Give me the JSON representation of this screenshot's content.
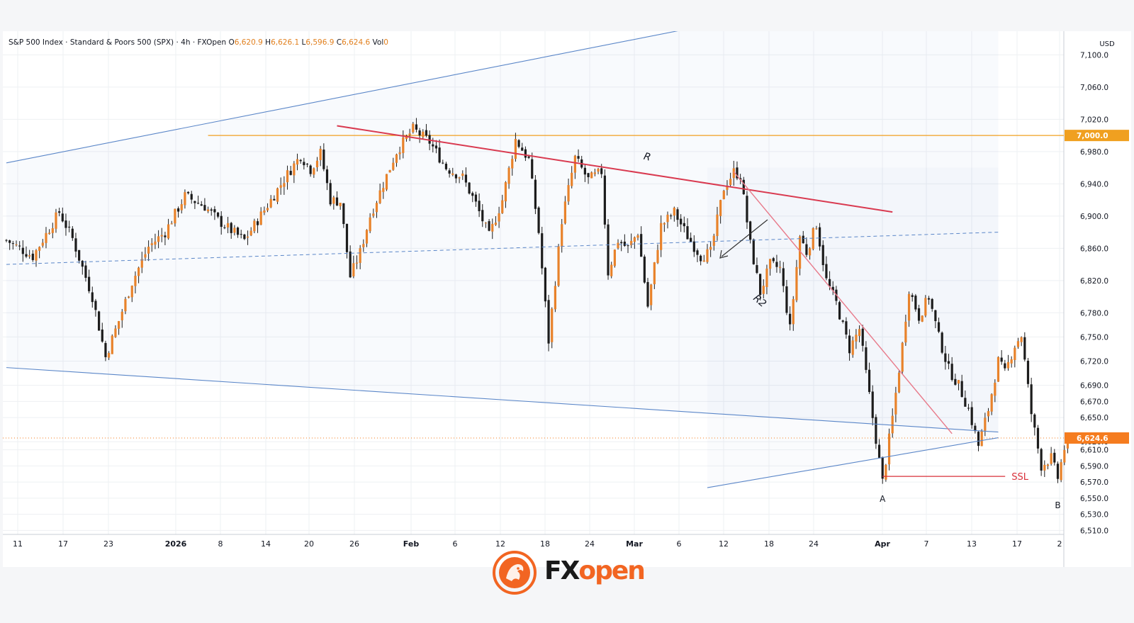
{
  "header": {
    "instrument": "S&P 500 Index · Standard & Poors 500 (SPX) · 4h · FXOpen",
    "open_label": "O",
    "open": "6,620.9",
    "high_label": "H",
    "high": "6,626.1",
    "low_label": "L",
    "low": "6,596.9",
    "close_label": "C",
    "close": "6,624.6",
    "vol_label": "Vol",
    "vol": "0"
  },
  "currency": "USD",
  "logo": {
    "fx": "FX",
    "open": "open"
  },
  "colors": {
    "up_candle": "#e8822a",
    "down_candle": "#1c1c1c",
    "channel": "#5a86c8",
    "resistance_R": "#d93a50",
    "resistance_R2": "#e87a8a",
    "level_7000": "#f0a020",
    "price_tag": "#f57c1f",
    "ssl": "#d9303a"
  },
  "chart_data": {
    "type": "candlestick",
    "timeframe": "4h",
    "currency": "USD",
    "ylim": [
      6505,
      7125
    ],
    "x_ticks": [
      "11",
      "17",
      "23",
      "2026",
      "8",
      "14",
      "20",
      "26",
      "Feb",
      "6",
      "12",
      "18",
      "24",
      "Mar",
      "6",
      "12",
      "18",
      "24",
      "Apr",
      "7",
      "13",
      "17",
      "2"
    ],
    "y_ticks": [
      "7,100.0",
      "7,060.0",
      "7,020.0",
      "6,980.0",
      "6,940.0",
      "6,900.0",
      "6,860.0",
      "6,820.0",
      "6,780.0",
      "6,750.0",
      "6,720.0",
      "6,690.0",
      "6,670.0",
      "6,650.0",
      "6,620.0",
      "6,610.0",
      "6,590.0",
      "6,570.0",
      "6,550.0",
      "6,530.0",
      "6,510.0"
    ],
    "last_price": {
      "label": "6,624.6",
      "value": 6624.6
    },
    "levels": [
      {
        "label": "7,000.0",
        "value": 7000
      }
    ],
    "close_path": [
      [
        0,
        6870
      ],
      [
        8,
        6850
      ],
      [
        16,
        6905
      ],
      [
        20,
        6872
      ],
      [
        26,
        6800
      ],
      [
        30,
        6725
      ],
      [
        34,
        6770
      ],
      [
        38,
        6818
      ],
      [
        43,
        6862
      ],
      [
        48,
        6880
      ],
      [
        54,
        6925
      ],
      [
        60,
        6912
      ],
      [
        64,
        6895
      ],
      [
        68,
        6882
      ],
      [
        72,
        6870
      ],
      [
        76,
        6895
      ],
      [
        80,
        6920
      ],
      [
        85,
        6952
      ],
      [
        89,
        6975
      ],
      [
        92,
        6958
      ],
      [
        95,
        6978
      ],
      [
        98,
        6920
      ],
      [
        101,
        6918
      ],
      [
        104,
        6825
      ],
      [
        107,
        6855
      ],
      [
        110,
        6900
      ],
      [
        113,
        6930
      ],
      [
        118,
        6980
      ],
      [
        123,
        7008
      ],
      [
        128,
        6992
      ],
      [
        133,
        6960
      ],
      [
        138,
        6948
      ],
      [
        142,
        6915
      ],
      [
        146,
        6875
      ],
      [
        150,
        6920
      ],
      [
        154,
        6995
      ],
      [
        158,
        6970
      ],
      [
        161,
        6880
      ],
      [
        164,
        6745
      ],
      [
        168,
        6895
      ],
      [
        172,
        6972
      ],
      [
        176,
        6945
      ],
      [
        180,
        6955
      ],
      [
        182,
        6830
      ],
      [
        185,
        6870
      ],
      [
        188,
        6860
      ],
      [
        191,
        6880
      ],
      [
        194,
        6788
      ],
      [
        198,
        6888
      ],
      [
        202,
        6905
      ],
      [
        206,
        6875
      ],
      [
        210,
        6850
      ],
      [
        213,
        6855
      ],
      [
        217,
        6935
      ],
      [
        220,
        6955
      ],
      [
        222,
        6950
      ],
      [
        225,
        6865
      ],
      [
        228,
        6805
      ],
      [
        231,
        6840
      ],
      [
        234,
        6835
      ],
      [
        237,
        6760
      ],
      [
        240,
        6875
      ],
      [
        242,
        6855
      ],
      [
        245,
        6890
      ],
      [
        248,
        6820
      ],
      [
        251,
        6792
      ],
      [
        255,
        6735
      ],
      [
        258,
        6760
      ],
      [
        262,
        6650
      ],
      [
        265,
        6570
      ],
      [
        268,
        6650
      ],
      [
        271,
        6740
      ],
      [
        273,
        6810
      ],
      [
        276,
        6775
      ],
      [
        279,
        6800
      ],
      [
        282,
        6750
      ],
      [
        285,
        6710
      ],
      [
        288,
        6690
      ],
      [
        291,
        6660
      ],
      [
        294,
        6615
      ],
      [
        297,
        6660
      ],
      [
        300,
        6720
      ],
      [
        302,
        6705
      ],
      [
        305,
        6740
      ],
      [
        307,
        6752
      ],
      [
        310,
        6655
      ],
      [
        313,
        6590
      ],
      [
        316,
        6600
      ],
      [
        318,
        6575
      ],
      [
        320,
        6612
      ],
      [
        322,
        6624.6
      ]
    ],
    "annotations": [
      {
        "type": "trendline",
        "label": "R",
        "from": [
          100,
          7012
        ],
        "to": [
          268,
          6905
        ]
      },
      {
        "type": "trendline",
        "label": "R2",
        "from": [
          220,
          6955
        ],
        "to": [
          286,
          6630
        ]
      },
      {
        "type": "channel_upper",
        "label": "",
        "from": [
          0,
          6966
        ],
        "to": [
          300,
          7208
        ]
      },
      {
        "type": "channel_mid",
        "label": "",
        "from": [
          0,
          6840
        ],
        "to": [
          300,
          6880
        ]
      },
      {
        "type": "channel_lower",
        "label": "",
        "from": [
          0,
          6712
        ],
        "to": [
          300,
          6632
        ]
      },
      {
        "type": "support_line",
        "label": "",
        "from": [
          212,
          6563
        ],
        "to": [
          300,
          6625
        ]
      },
      {
        "type": "horizontal",
        "label": "SSL",
        "from": [
          265,
          6577
        ],
        "to": [
          300,
          6577
        ]
      },
      {
        "type": "point",
        "label": "A",
        "x": 265,
        "y": 6570
      },
      {
        "type": "point",
        "label": "B",
        "x": 318,
        "y": 6562
      }
    ]
  }
}
